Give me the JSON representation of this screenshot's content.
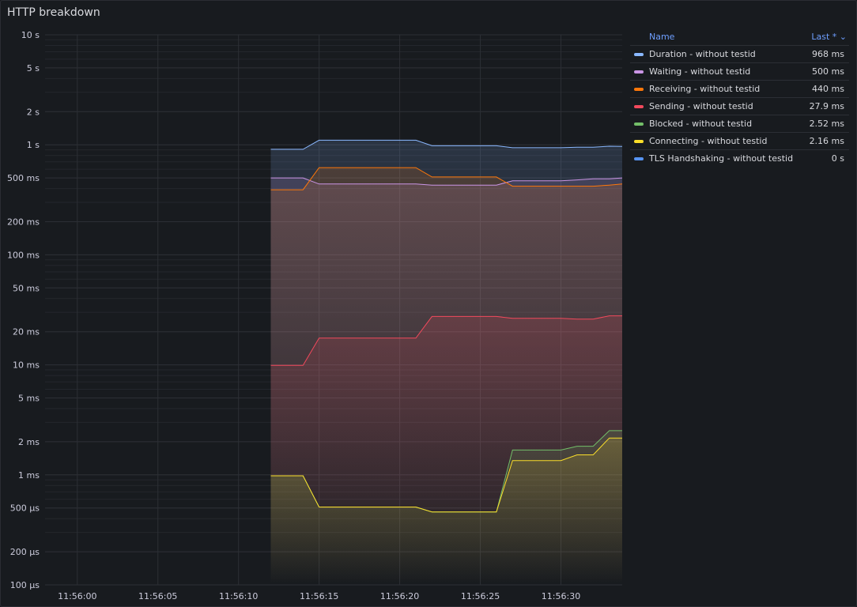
{
  "panel": {
    "title": "HTTP breakdown"
  },
  "legend": {
    "name_header": "Name",
    "last_header": "Last *",
    "sort_icon": "chevron-down-icon",
    "header_color": "#6e9fff"
  },
  "chart_data": {
    "type": "line",
    "title": "HTTP breakdown",
    "yscale": "log",
    "ylim_seconds": [
      0.0001,
      10
    ],
    "y_tick_labels": [
      "10 s",
      "5 s",
      "2 s",
      "1 s",
      "500 ms",
      "200 ms",
      "100 ms",
      "50 ms",
      "20 ms",
      "10 ms",
      "5 ms",
      "2 ms",
      "1 ms",
      "500 µs",
      "200 µs",
      "100 µs"
    ],
    "y_tick_values": [
      10,
      5,
      2,
      1,
      0.5,
      0.2,
      0.1,
      0.05,
      0.02,
      0.01,
      0.005,
      0.002,
      0.001,
      0.0005,
      0.0002,
      0.0001
    ],
    "xlim": [
      "11:55:58",
      "11:56:33.8"
    ],
    "x_tick_labels": [
      "11:56:00",
      "11:56:05",
      "11:56:10",
      "11:56:15",
      "11:56:20",
      "11:56:25",
      "11:56:30"
    ],
    "x": [
      "11:56:12",
      "11:56:14",
      "11:56:15",
      "11:56:21",
      "11:56:22",
      "11:56:26",
      "11:56:27",
      "11:56:30",
      "11:56:31",
      "11:56:32",
      "11:56:33",
      "11:56:33.8"
    ],
    "grid": true,
    "legend_position": "right",
    "series": [
      {
        "name": "Duration - without testid",
        "color": "#8ab8ff",
        "last": "968 ms",
        "values": [
          0.91,
          0.91,
          1.1,
          1.1,
          0.98,
          0.98,
          0.94,
          0.94,
          0.95,
          0.95,
          0.97,
          0.968
        ]
      },
      {
        "name": "Waiting - without testid",
        "color": "#ca95e5",
        "last": "500 ms",
        "values": [
          0.5,
          0.5,
          0.44,
          0.44,
          0.43,
          0.43,
          0.47,
          0.47,
          0.48,
          0.49,
          0.49,
          0.5
        ]
      },
      {
        "name": "Receiving - without testid",
        "color": "#ff780a",
        "last": "440 ms",
        "values": [
          0.39,
          0.39,
          0.62,
          0.62,
          0.51,
          0.51,
          0.42,
          0.42,
          0.42,
          0.42,
          0.43,
          0.44
        ]
      },
      {
        "name": "Sending - without testid",
        "color": "#f2495c",
        "last": "27.9 ms",
        "values": [
          0.0099,
          0.0099,
          0.0175,
          0.0175,
          0.0275,
          0.0275,
          0.0265,
          0.0265,
          0.026,
          0.026,
          0.0279,
          0.0279
        ]
      },
      {
        "name": "Blocked - without testid",
        "color": "#73bf69",
        "last": "2.52 ms",
        "values": [
          0.00098,
          0.00098,
          0.00051,
          0.00051,
          0.00046,
          0.00046,
          0.00168,
          0.00168,
          0.00182,
          0.00182,
          0.00252,
          0.00252
        ]
      },
      {
        "name": "Connecting - without testid",
        "color": "#fade2a",
        "last": "2.16 ms",
        "values": [
          0.00098,
          0.00098,
          0.00051,
          0.00051,
          0.00046,
          0.00046,
          0.00135,
          0.00135,
          0.00152,
          0.00152,
          0.00216,
          0.00216
        ]
      },
      {
        "name": "TLS Handshaking - without testid",
        "color": "#5794f2",
        "last": "0 s",
        "values": [
          0,
          0,
          0,
          0,
          0,
          0,
          0,
          0,
          0,
          0,
          0,
          0
        ]
      }
    ]
  }
}
